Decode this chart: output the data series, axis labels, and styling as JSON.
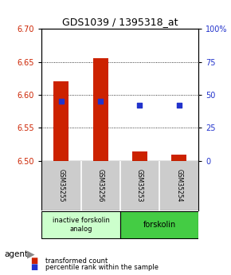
{
  "title": "GDS1039 / 1395318_at",
  "samples": [
    "GSM35255",
    "GSM35256",
    "GSM35253",
    "GSM35254"
  ],
  "bar_bottoms": [
    6.5,
    6.5,
    6.5,
    6.5
  ],
  "bar_tops": [
    6.621,
    6.656,
    6.514,
    6.509
  ],
  "blue_percentiles": [
    45,
    45,
    42,
    42
  ],
  "ylim": [
    6.5,
    6.7
  ],
  "yticks_left": [
    6.5,
    6.55,
    6.6,
    6.65,
    6.7
  ],
  "yticks_right": [
    0,
    25,
    50,
    75,
    100
  ],
  "bar_color": "#cc2200",
  "blue_color": "#2233cc",
  "group1_label": "inactive forskolin\nanalog",
  "group1_indices": [
    0,
    1
  ],
  "group1_color": "#ccffcc",
  "group2_label": "forskolin",
  "group2_indices": [
    2,
    3
  ],
  "group2_color": "#44cc44",
  "legend_red": "transformed count",
  "legend_blue": "percentile rank within the sample",
  "agent_label": "agent",
  "sample_box_color": "#cccccc",
  "background_color": "#ffffff",
  "title_fontsize": 9,
  "tick_fontsize": 7,
  "sample_fontsize": 5.5,
  "group_fontsize": 6,
  "legend_fontsize": 6
}
